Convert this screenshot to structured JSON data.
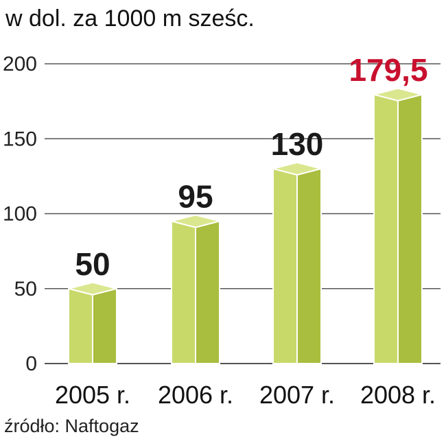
{
  "chart_data": {
    "type": "bar",
    "unit_label": "w dol. za 1000 m sześc.",
    "categories": [
      "2005 r.",
      "2006 r.",
      "2007 r.",
      "2008 r."
    ],
    "values": [
      50,
      95,
      130,
      179.5
    ],
    "value_labels": [
      "50",
      "95",
      "130",
      "179,5"
    ],
    "yticks": [
      0,
      50,
      100,
      150,
      200
    ],
    "ylim": [
      0,
      200
    ],
    "grid": true,
    "source": "źródło: Naftogaz",
    "colors": {
      "bar_front": "#c8d96a",
      "bar_side": "#a9bd3f",
      "bar_top": "#dbe78f",
      "bar_edge": "#ffffff",
      "gridline": "#555555",
      "value_default": "#1a1a1a",
      "value_highlight": "#c8102e"
    },
    "highlight_index": 3
  }
}
